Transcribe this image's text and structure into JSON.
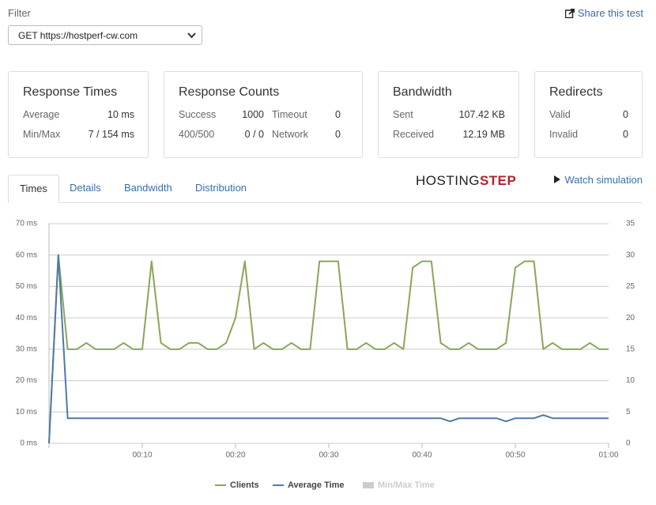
{
  "filter": {
    "label": "Filter",
    "selected": "GET https://hostperf-cw.com"
  },
  "share": "Share this test",
  "cards": [
    {
      "title": "Response Times",
      "rows": [
        [
          "Average",
          "10 ms"
        ],
        [
          "Min/Max",
          "7 / 154 ms"
        ]
      ]
    },
    {
      "title": "Response Counts",
      "rows": [
        [
          "Success",
          "1000",
          "Timeout",
          "0"
        ],
        [
          "400/500",
          "0 / 0",
          "Network",
          "0"
        ]
      ]
    },
    {
      "title": "Bandwidth",
      "rows": [
        [
          "Sent",
          "107.42 KB"
        ],
        [
          "Received",
          "12.19 MB"
        ]
      ]
    },
    {
      "title": "Redirects",
      "rows": [
        [
          "Valid",
          "0"
        ],
        [
          "Invalid",
          "0"
        ]
      ]
    }
  ],
  "tabs": [
    "Times",
    "Details",
    "Bandwidth",
    "Distribution"
  ],
  "logo": [
    "HOSTING",
    "STEP"
  ],
  "watch": "Watch simulation",
  "chart_data": {
    "type": "line",
    "x": [
      0,
      1,
      2,
      3,
      4,
      5,
      6,
      7,
      8,
      9,
      10,
      11,
      12,
      13,
      14,
      15,
      16,
      17,
      18,
      19,
      20,
      21,
      22,
      23,
      24,
      25,
      26,
      27,
      28,
      29,
      30,
      31,
      32,
      33,
      34,
      35,
      36,
      37,
      38,
      39,
      40,
      41,
      42,
      43,
      44,
      45,
      46,
      47,
      48,
      49,
      50,
      51,
      52,
      53,
      54,
      55,
      56,
      57,
      58,
      59,
      60
    ],
    "xlim": [
      0,
      60
    ],
    "xticks": [
      {
        "value": 10,
        "label": "00:10"
      },
      {
        "value": 20,
        "label": "00:20"
      },
      {
        "value": 30,
        "label": "00:30"
      },
      {
        "value": 40,
        "label": "00:40"
      },
      {
        "value": 50,
        "label": "00:50"
      },
      {
        "value": 60,
        "label": "01:00"
      }
    ],
    "ylim": [
      0,
      70
    ],
    "yticks": [
      {
        "value": 0,
        "label": "0 ms"
      },
      {
        "value": 10,
        "label": "10 ms"
      },
      {
        "value": 20,
        "label": "20 ms"
      },
      {
        "value": 30,
        "label": "30 ms"
      },
      {
        "value": 40,
        "label": "40 ms"
      },
      {
        "value": 50,
        "label": "50 ms"
      },
      {
        "value": 60,
        "label": "60 ms"
      },
      {
        "value": 70,
        "label": "70 ms"
      }
    ],
    "y2lim": [
      0,
      35
    ],
    "y2ticks": [
      0,
      5,
      10,
      15,
      20,
      25,
      30,
      35
    ],
    "grid": true,
    "series": [
      {
        "name": "Clients",
        "color": "#8aa65a",
        "axis": "y2",
        "visible": true,
        "values": [
          0,
          30,
          15,
          15,
          16,
          15,
          15,
          15,
          16,
          15,
          15,
          29,
          16,
          15,
          15,
          16,
          16,
          15,
          15,
          16,
          20,
          29,
          15,
          16,
          15,
          15,
          16,
          15,
          15,
          29,
          29,
          29,
          15,
          15,
          16,
          15,
          15,
          16,
          15,
          28,
          29,
          29,
          16,
          15,
          15,
          16,
          15,
          15,
          15,
          16,
          28,
          29,
          29,
          15,
          16,
          15,
          15,
          15,
          16,
          15,
          15
        ]
      },
      {
        "name": "Average Time",
        "color": "#4f7aa6",
        "visible": true,
        "values": [
          0,
          60,
          8,
          8,
          8,
          8,
          8,
          8,
          8,
          8,
          8,
          8,
          8,
          8,
          8,
          8,
          8,
          8,
          8,
          8,
          8,
          8,
          8,
          8,
          8,
          8,
          8,
          8,
          8,
          8,
          8,
          8,
          8,
          8,
          8,
          8,
          8,
          8,
          8,
          8,
          8,
          8,
          8,
          7,
          8,
          8,
          8,
          8,
          8,
          7,
          8,
          8,
          8,
          9,
          8,
          8,
          8,
          8,
          8,
          8,
          8
        ]
      },
      {
        "name": "Min/Max Time",
        "color": "#cccccc",
        "visible": false,
        "values": [
          null,
          null,
          null,
          null,
          null,
          null,
          null,
          null,
          null,
          null,
          null,
          null,
          null,
          null,
          null,
          null,
          null,
          null,
          null,
          null,
          null,
          null,
          null,
          null,
          null,
          null,
          null,
          null,
          null,
          null,
          null,
          null,
          null,
          null,
          null,
          null,
          null,
          null,
          null,
          null,
          null,
          null,
          null,
          null,
          null,
          null,
          null,
          null,
          null,
          null,
          null,
          null,
          null,
          null,
          null,
          null,
          null,
          null,
          null,
          null,
          null
        ]
      }
    ]
  }
}
